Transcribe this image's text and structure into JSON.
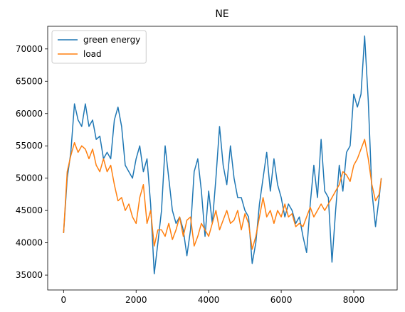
{
  "chart_data": {
    "type": "line",
    "title": "NE",
    "x": [
      0,
      100,
      200,
      300,
      400,
      500,
      600,
      700,
      800,
      900,
      1000,
      1100,
      1200,
      1300,
      1400,
      1500,
      1600,
      1700,
      1800,
      1900,
      2000,
      2100,
      2200,
      2300,
      2400,
      2500,
      2600,
      2700,
      2800,
      2900,
      3000,
      3100,
      3200,
      3300,
      3400,
      3500,
      3600,
      3700,
      3800,
      3900,
      4000,
      4100,
      4200,
      4300,
      4400,
      4500,
      4600,
      4700,
      4800,
      4900,
      5000,
      5100,
      5200,
      5300,
      5400,
      5500,
      5600,
      5700,
      5800,
      5900,
      6000,
      6100,
      6200,
      6300,
      6400,
      6500,
      6600,
      6700,
      6800,
      6900,
      7000,
      7100,
      7200,
      7300,
      7400,
      7500,
      7600,
      7700,
      7800,
      7900,
      8000,
      8100,
      8200,
      8300,
      8400,
      8500,
      8600,
      8700,
      8759
    ],
    "series": [
      {
        "name": "green energy",
        "color": "#1f77b4",
        "values": [
          41500,
          50000,
          54000,
          61500,
          59000,
          58000,
          61500,
          58000,
          59000,
          56000,
          56500,
          53000,
          54000,
          53000,
          59000,
          61000,
          58000,
          52000,
          51000,
          50000,
          53000,
          55000,
          51000,
          53000,
          46000,
          35200,
          40000,
          45000,
          55000,
          50000,
          45000,
          43000,
          44000,
          42000,
          38000,
          42000,
          51000,
          53000,
          48000,
          41000,
          48000,
          43000,
          50000,
          58000,
          52000,
          49000,
          55000,
          50000,
          47000,
          47000,
          45000,
          44000,
          36800,
          40000,
          46000,
          50000,
          54000,
          48000,
          53000,
          49000,
          47000,
          44000,
          46000,
          45000,
          43000,
          44000,
          41000,
          38500,
          46000,
          52000,
          47000,
          56000,
          48000,
          47000,
          37000,
          45000,
          52000,
          48000,
          54000,
          55000,
          63000,
          61000,
          63000,
          72000,
          62000,
          48000,
          42500,
          47000,
          50000
        ]
      },
      {
        "name": "load",
        "color": "#ff7f0e",
        "values": [
          41500,
          51000,
          53500,
          55500,
          54000,
          55000,
          54500,
          53000,
          54500,
          52000,
          51000,
          53000,
          51000,
          52000,
          49000,
          46500,
          47000,
          45000,
          46000,
          44000,
          43000,
          47000,
          49000,
          43000,
          45000,
          39500,
          42000,
          42000,
          41000,
          43000,
          40500,
          42000,
          44000,
          41000,
          43500,
          44000,
          39500,
          41000,
          43000,
          42000,
          41000,
          43000,
          45000,
          42000,
          43500,
          45000,
          43000,
          43500,
          45000,
          42000,
          44500,
          43000,
          39000,
          41000,
          44000,
          47000,
          44000,
          45000,
          43000,
          45000,
          44000,
          46000,
          44000,
          44500,
          42500,
          43000,
          42500,
          44000,
          45500,
          44000,
          45000,
          46000,
          45000,
          46000,
          47000,
          48000,
          49000,
          51000,
          50500,
          49500,
          52000,
          53000,
          54500,
          56000,
          53000,
          49000,
          46500,
          47500,
          50000
        ]
      }
    ],
    "xlim": [
      -438,
      9197
    ],
    "ylim": [
      32700,
      73500
    ],
    "xticks": [
      0,
      2000,
      4000,
      6000,
      8000
    ],
    "yticks": [
      35000,
      40000,
      45000,
      50000,
      55000,
      60000,
      65000,
      70000
    ],
    "legend": "upper left"
  }
}
